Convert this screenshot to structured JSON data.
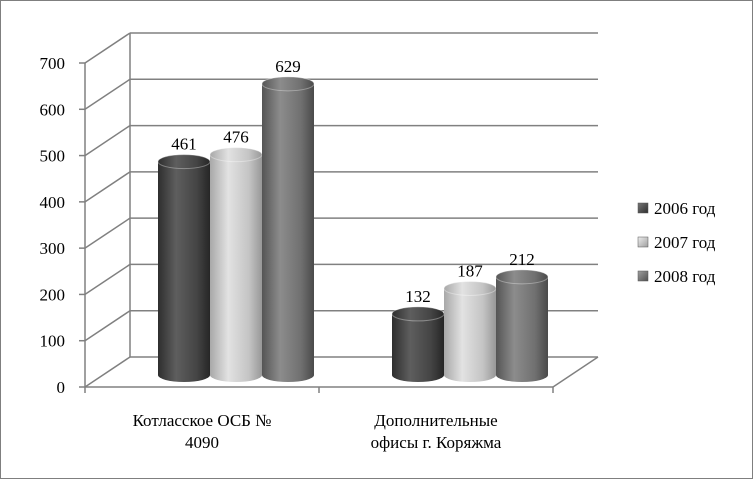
{
  "chart_data": {
    "type": "bar",
    "style": "3d-cylinder",
    "categories": [
      [
        "Котласское ОСБ №",
        "4090"
      ],
      [
        "Дополнительные",
        "офисы г. Коряжма"
      ]
    ],
    "series": [
      {
        "name": "2006 год",
        "values": [
          461,
          132
        ]
      },
      {
        "name": "2007 год",
        "values": [
          476,
          187
        ]
      },
      {
        "name": "2008 год",
        "values": [
          629,
          212
        ]
      }
    ],
    "yticks": [
      "0",
      "100",
      "200",
      "300",
      "400",
      "500",
      "600",
      "700"
    ],
    "ylim": [
      0,
      700
    ],
    "grid": true,
    "legend_position": "right",
    "colors": [
      "#4d4d4d",
      "#c0c0c0",
      "#7a7a7a"
    ]
  }
}
